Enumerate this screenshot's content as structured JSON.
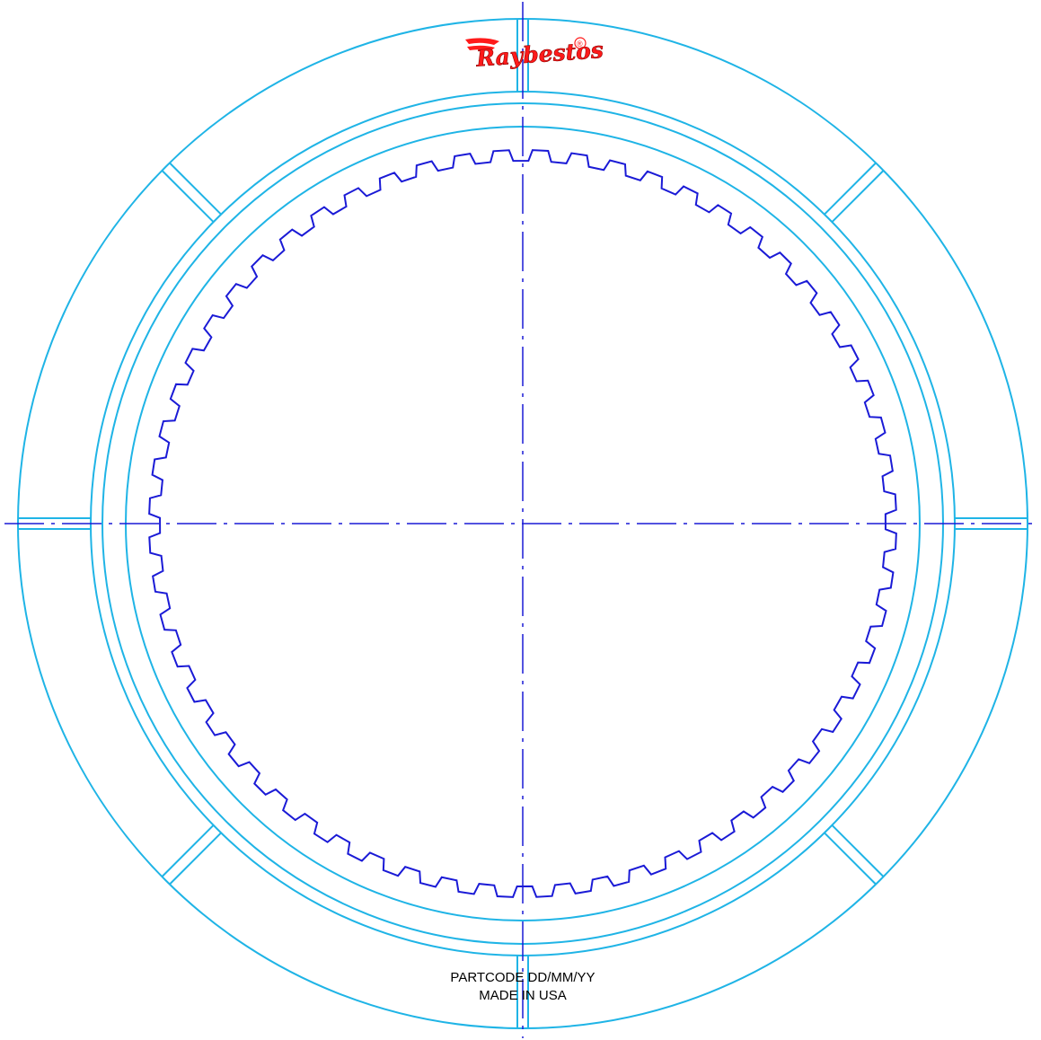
{
  "brand": {
    "name": "Raybestos",
    "registered_mark": "®",
    "color": "#ff1a1a"
  },
  "stamp": {
    "line1": "PARTCODE DD/MM/YY",
    "line2": "MADE IN USA",
    "color": "#000000"
  },
  "colors": {
    "friction_outline": "#1fb4e6",
    "spline_and_centerlines": "#1a1ad6"
  },
  "part": {
    "type": "clutch friction plate",
    "internal_spline_teeth": 60,
    "friction_segments": 8
  }
}
